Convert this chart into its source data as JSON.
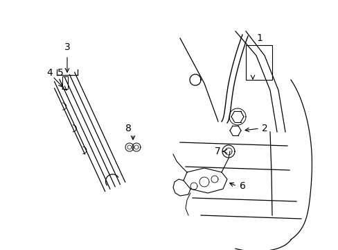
{
  "bg_color": "#ffffff",
  "line_color": "#000000",
  "fig_width": 4.89,
  "fig_height": 3.6,
  "dpi": 100,
  "label_fontsize": 10
}
